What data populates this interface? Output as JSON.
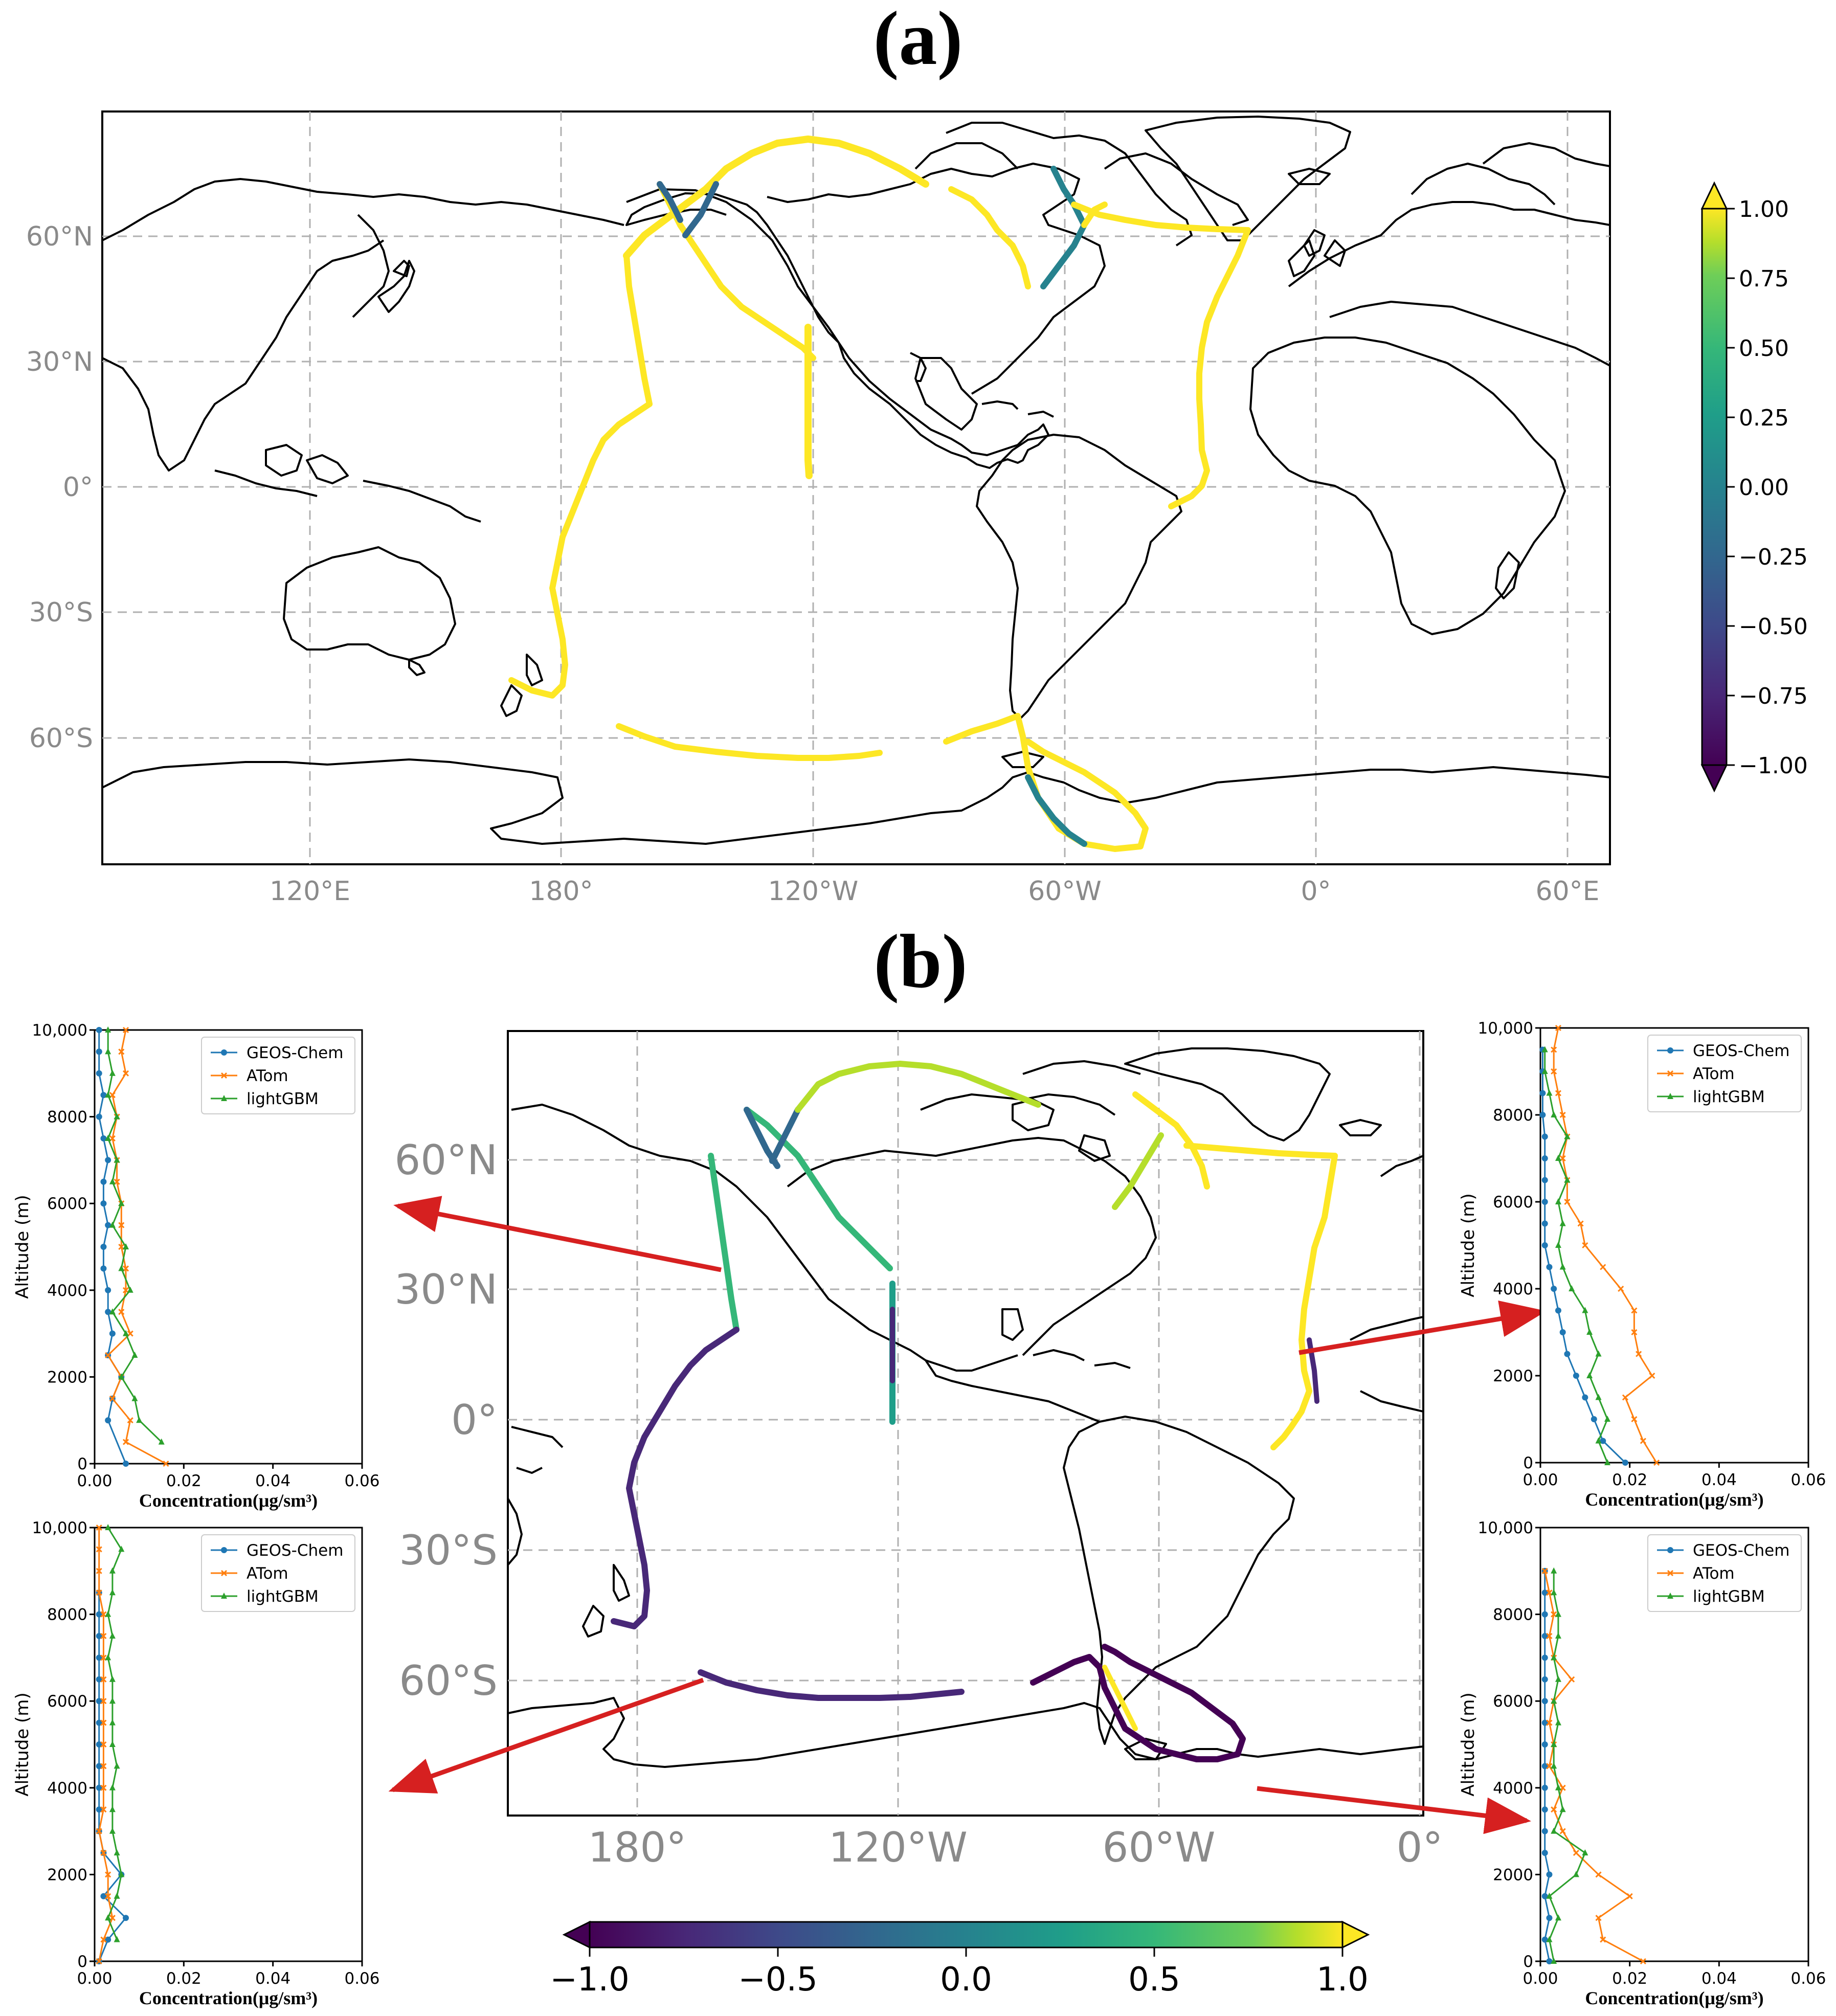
{
  "panels": {
    "a": "(a)",
    "b": "(b)"
  },
  "map_a": {
    "lat_ticks": [
      "60°N",
      "30°N",
      "0°",
      "30°S",
      "60°S"
    ],
    "lon_ticks": [
      "120°E",
      "180°",
      "120°W",
      "60°W",
      "0°",
      "60°E"
    ],
    "colorbar": {
      "colormap": "viridis",
      "orientation": "vertical",
      "ticks": [
        "1.00",
        "0.75",
        "0.50",
        "0.25",
        "0.00",
        "−0.25",
        "−0.50",
        "−0.75",
        "−1.00"
      ],
      "extend": "both"
    }
  },
  "map_b": {
    "lat_ticks": [
      "60°N",
      "30°N",
      "0°",
      "30°S",
      "60°S"
    ],
    "lon_ticks": [
      "180°",
      "120°W",
      "60°W",
      "0°"
    ],
    "colorbar": {
      "colormap": "viridis",
      "orientation": "horizontal",
      "ticks": [
        "−1.0",
        "−0.5",
        "0.0",
        "0.5",
        "1.0"
      ],
      "extend": "both"
    }
  },
  "colors": {
    "geos": "#1f77b4",
    "atom": "#ff7f0e",
    "lgbm": "#2ca02c",
    "arrow": "#d62020",
    "grid": "#b0b0b0"
  },
  "chart_data": [
    {
      "id": "top-left",
      "type": "line",
      "xlabel": "Concentration(μg/sm³)",
      "ylabel": "Altitude (m)",
      "xlim": [
        0,
        0.06
      ],
      "ylim": [
        0,
        10000
      ],
      "xticks": [
        "0.00",
        "0.02",
        "0.04",
        "0.06"
      ],
      "yticks": [
        "0",
        "2000",
        "4000",
        "6000",
        "8000",
        "10,000"
      ],
      "legend": "upper right",
      "series": [
        {
          "name": "GEOS-Chem",
          "marker": "circle",
          "x": [
            0.007,
            0.003,
            0.004,
            0.006,
            0.003,
            0.004,
            0.003,
            0.003,
            0.002,
            0.002,
            0.003,
            0.002,
            0.002,
            0.003,
            0.002,
            0.001,
            0.002,
            0.001,
            0.001,
            0.001,
            0.001
          ],
          "y": [
            0,
            1000,
            1500,
            2000,
            2500,
            3000,
            3500,
            4000,
            4500,
            5000,
            5500,
            6000,
            6500,
            7000,
            7500,
            8000,
            8500,
            9000,
            9500,
            9500,
            10000
          ]
        },
        {
          "name": "ATom",
          "marker": "x",
          "x": [
            0.016,
            0.007,
            0.008,
            0.004,
            0.006,
            0.003,
            0.008,
            0.006,
            0.007,
            0.007,
            0.006,
            0.006,
            0.006,
            0.005,
            0.005,
            0.004,
            0.005,
            0.004,
            0.007,
            0.006,
            0.007
          ],
          "y": [
            0,
            500,
            1000,
            1500,
            2000,
            2500,
            3000,
            3500,
            4000,
            4500,
            5000,
            5500,
            6000,
            6500,
            7000,
            7500,
            8000,
            8500,
            9000,
            9500,
            10000
          ]
        },
        {
          "name": "lightGBM",
          "marker": "triangle",
          "x": [
            0.015,
            0.01,
            0.009,
            0.006,
            0.009,
            0.007,
            0.004,
            0.008,
            0.006,
            0.007,
            0.004,
            0.006,
            0.004,
            0.005,
            0.003,
            0.005,
            0.003,
            0.004,
            0.003,
            0.003
          ],
          "y": [
            500,
            1000,
            1500,
            2000,
            2500,
            3000,
            3500,
            4000,
            4500,
            5000,
            5500,
            6000,
            6500,
            7000,
            7500,
            8000,
            8500,
            9000,
            9500,
            10000
          ]
        }
      ]
    },
    {
      "id": "bottom-left",
      "type": "line",
      "xlabel": "Concentration(μg/sm³)",
      "ylabel": "Altitude (m)",
      "xlim": [
        0,
        0.06
      ],
      "ylim": [
        0,
        10000
      ],
      "xticks": [
        "0.00",
        "0.02",
        "0.04",
        "0.06"
      ],
      "yticks": [
        "0",
        "2000",
        "4000",
        "6000",
        "8000",
        "10,000"
      ],
      "legend": "upper right",
      "series": [
        {
          "name": "GEOS-Chem",
          "marker": "circle",
          "x": [
            0.001,
            0.003,
            0.007,
            0.002,
            0.006,
            0.002,
            0.001,
            0.001,
            0.001,
            0.001,
            0.001,
            0.001,
            0.001,
            0.001,
            0.001,
            0.001,
            0.001,
            0.001
          ],
          "y": [
            0,
            500,
            1000,
            1500,
            2000,
            2500,
            3000,
            3500,
            4000,
            4500,
            5000,
            5500,
            6000,
            6500,
            7000,
            7500,
            8000,
            8500
          ]
        },
        {
          "name": "ATom",
          "marker": "x",
          "x": [
            0.001,
            0.002,
            0.004,
            0.003,
            0.003,
            0.002,
            0.001,
            0.002,
            0.002,
            0.002,
            0.002,
            0.002,
            0.002,
            0.002,
            0.002,
            0.002,
            0.002,
            0.001,
            0.001,
            0.001,
            0.001
          ],
          "y": [
            0,
            500,
            1000,
            1500,
            2000,
            2500,
            3000,
            3500,
            4000,
            4500,
            5000,
            5500,
            6000,
            6500,
            7000,
            7500,
            8000,
            8500,
            9000,
            9500,
            10000
          ]
        },
        {
          "name": "lightGBM",
          "marker": "triangle",
          "x": [
            0.005,
            0.003,
            0.005,
            0.006,
            0.005,
            0.004,
            0.004,
            0.004,
            0.005,
            0.004,
            0.004,
            0.004,
            0.004,
            0.003,
            0.004,
            0.003,
            0.004,
            0.004,
            0.006,
            0.003
          ],
          "y": [
            500,
            1000,
            1500,
            2000,
            2500,
            3000,
            3500,
            4000,
            4500,
            5000,
            5500,
            6000,
            6500,
            7000,
            7500,
            8000,
            8500,
            9000,
            9500,
            10000
          ]
        }
      ]
    },
    {
      "id": "top-right",
      "type": "line",
      "xlabel": "Concentration(μg/sm³)",
      "ylabel": "Altitude (m)",
      "xlim": [
        0,
        0.06
      ],
      "ylim": [
        0,
        10000
      ],
      "xticks": [
        "0.00",
        "0.02",
        "0.04",
        "0.06"
      ],
      "yticks": [
        "0",
        "2000",
        "4000",
        "6000",
        "8000",
        "10,000"
      ],
      "legend": "upper right",
      "series": [
        {
          "name": "GEOS-Chem",
          "marker": "circle",
          "x": [
            0.019,
            0.014,
            0.012,
            0.01,
            0.008,
            0.006,
            0.005,
            0.004,
            0.003,
            0.002,
            0.001,
            0.001,
            0.001,
            0.001,
            0.001,
            0.001,
            0.0005,
            0.0005,
            0.0005,
            0.0005
          ],
          "y": [
            0,
            500,
            1000,
            1500,
            2000,
            2500,
            3000,
            3500,
            4000,
            4500,
            5000,
            5500,
            6000,
            6500,
            7000,
            7500,
            8000,
            8500,
            9000,
            9500
          ]
        },
        {
          "name": "ATom",
          "marker": "x",
          "x": [
            0.026,
            0.023,
            0.021,
            0.019,
            0.025,
            0.022,
            0.021,
            0.021,
            0.018,
            0.014,
            0.01,
            0.009,
            0.006,
            0.006,
            0.005,
            0.006,
            0.005,
            0.004,
            0.003,
            0.003,
            0.004
          ],
          "y": [
            0,
            500,
            1000,
            1500,
            2000,
            2500,
            3000,
            3500,
            4000,
            4500,
            5000,
            5500,
            6000,
            6500,
            7000,
            7500,
            8000,
            8500,
            9000,
            9500,
            10000
          ]
        },
        {
          "name": "lightGBM",
          "marker": "triangle",
          "x": [
            0.015,
            0.013,
            0.015,
            0.013,
            0.011,
            0.013,
            0.011,
            0.01,
            0.007,
            0.005,
            0.004,
            0.005,
            0.004,
            0.006,
            0.004,
            0.006,
            0.003,
            0.002,
            0.001,
            0.001
          ],
          "y": [
            0,
            500,
            1000,
            1500,
            2000,
            2500,
            3000,
            3500,
            4000,
            4500,
            5000,
            5500,
            6000,
            6500,
            7000,
            7500,
            8000,
            8500,
            9000,
            9500
          ]
        }
      ]
    },
    {
      "id": "bottom-right",
      "type": "line",
      "xlabel": "Concentration(μg/sm³)",
      "ylabel": "Altitude (m)",
      "xlim": [
        0,
        0.06
      ],
      "ylim": [
        0,
        10000
      ],
      "xticks": [
        "0.00",
        "0.02",
        "0.04",
        "0.06"
      ],
      "yticks": [
        "0",
        "2000",
        "4000",
        "6000",
        "8000",
        "10,000"
      ],
      "legend": "upper right",
      "series": [
        {
          "name": "GEOS-Chem",
          "marker": "circle",
          "x": [
            0.002,
            0.001,
            0.002,
            0.001,
            0.002,
            0.001,
            0.001,
            0.001,
            0.001,
            0.001,
            0.001,
            0.001,
            0.001,
            0.001,
            0.001,
            0.001,
            0.001,
            0.001,
            0.001
          ],
          "y": [
            0,
            500,
            1000,
            1500,
            2000,
            2500,
            3000,
            3500,
            4000,
            4500,
            5000,
            5500,
            6000,
            6500,
            7000,
            7500,
            8000,
            8500,
            9000
          ]
        },
        {
          "name": "ATom",
          "marker": "x",
          "x": [
            0.023,
            0.014,
            0.013,
            0.02,
            0.013,
            0.008,
            0.005,
            0.003,
            0.005,
            0.002,
            0.003,
            0.002,
            0.003,
            0.007,
            0.003,
            0.002,
            0.003,
            0.002,
            0.001
          ],
          "y": [
            0,
            500,
            1000,
            1500,
            2000,
            2500,
            3000,
            3500,
            4000,
            4500,
            5000,
            5500,
            6000,
            6500,
            7000,
            7500,
            8000,
            8500,
            9000
          ]
        },
        {
          "name": "lightGBM",
          "marker": "triangle",
          "x": [
            0.003,
            0.002,
            0.004,
            0.002,
            0.008,
            0.01,
            0.003,
            0.005,
            0.004,
            0.003,
            0.003,
            0.004,
            0.003,
            0.004,
            0.003,
            0.004,
            0.004,
            0.003,
            0.003
          ],
          "y": [
            0,
            500,
            1000,
            1500,
            2000,
            2500,
            3000,
            3500,
            4000,
            4500,
            5000,
            5500,
            6000,
            6500,
            7000,
            7500,
            8000,
            8500,
            9000
          ]
        }
      ]
    }
  ]
}
